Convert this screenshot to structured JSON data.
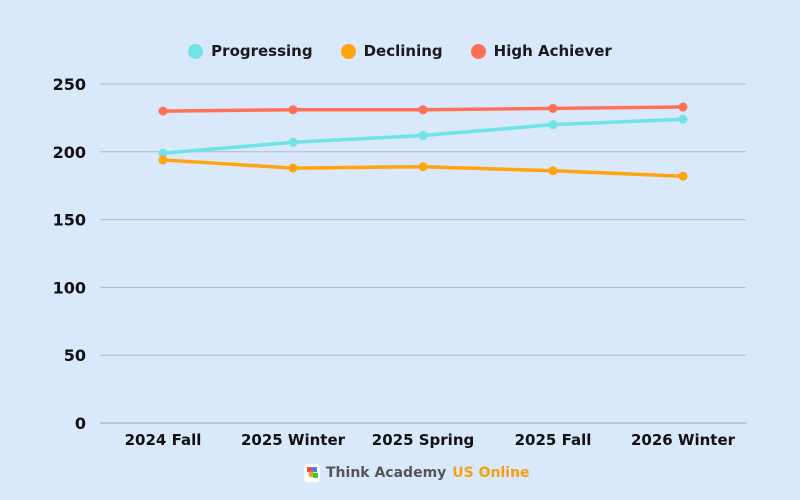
{
  "chart_data": {
    "type": "line",
    "categories": [
      "2024 Fall",
      "2025 Winter",
      "2025 Spring",
      "2025 Fall",
      "2026 Winter"
    ],
    "series": [
      {
        "name": "Progressing",
        "color": "#6fe3e6",
        "values": [
          199,
          207,
          212,
          220,
          224
        ]
      },
      {
        "name": "Declining",
        "color": "#ffa40d",
        "values": [
          194,
          188,
          189,
          186,
          182
        ]
      },
      {
        "name": "High Achiever",
        "color": "#ff7156",
        "values": [
          230,
          231,
          231,
          232,
          233
        ]
      }
    ],
    "yticks": [
      0,
      50,
      100,
      150,
      200,
      250
    ],
    "ylim": [
      0,
      250
    ],
    "grid": true,
    "legend": "top-center"
  },
  "logo": {
    "brand": "Think Academy",
    "suffix": "US Online"
  }
}
